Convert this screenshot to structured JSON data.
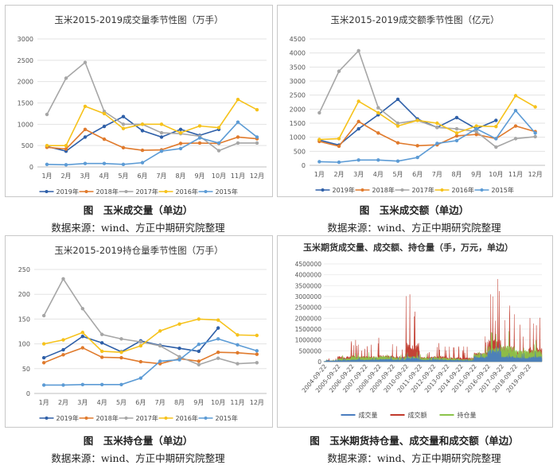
{
  "chart_data": [
    {
      "type": "line",
      "title": "玉米2015-2019成交量季节性图（万手）",
      "categories": [
        "1月",
        "2月",
        "3月",
        "4月",
        "5月",
        "6月",
        "7月",
        "8月",
        "9月",
        "10月",
        "11月",
        "12月"
      ],
      "ylim": [
        0,
        3000
      ],
      "yticks": [
        0,
        500,
        1000,
        1500,
        2000,
        2500,
        3000
      ],
      "series": [
        {
          "name": "2019年",
          "color": "#2e5fa8",
          "values": [
            480,
            370,
            700,
            950,
            1180,
            850,
            700,
            880,
            740,
            880,
            null,
            null
          ]
        },
        {
          "name": "2018年",
          "color": "#e07a2c",
          "values": [
            460,
            420,
            880,
            650,
            450,
            390,
            400,
            550,
            560,
            550,
            700,
            660
          ]
        },
        {
          "name": "2017年",
          "color": "#a6a6a6",
          "values": [
            1230,
            2080,
            2450,
            1300,
            1000,
            1000,
            800,
            780,
            720,
            380,
            560,
            560
          ]
        },
        {
          "name": "2016年",
          "color": "#f6c21b",
          "values": [
            500,
            500,
            1420,
            1250,
            900,
            1000,
            1000,
            800,
            960,
            920,
            1580,
            1340
          ]
        },
        {
          "name": "2015年",
          "color": "#5c9bd5",
          "values": [
            60,
            50,
            80,
            80,
            60,
            100,
            370,
            430,
            680,
            560,
            1050,
            700
          ]
        }
      ],
      "caption": "图　玉米成交量（单边）",
      "source": "数据来源：wind、方正中期研究院整理"
    },
    {
      "type": "line",
      "title": "玉米2015-2019成交额季节性图（亿元）",
      "categories": [
        "1月",
        "2月",
        "3月",
        "4月",
        "5月",
        "6月",
        "7月",
        "8月",
        "9月",
        "10月",
        "11月",
        "12月"
      ],
      "ylim": [
        0,
        4500
      ],
      "yticks": [
        0,
        500,
        1000,
        1500,
        2000,
        2500,
        3000,
        3500,
        4000,
        4500
      ],
      "series": [
        {
          "name": "2019年",
          "color": "#2e5fa8",
          "values": [
            900,
            720,
            1300,
            1800,
            2350,
            1650,
            1350,
            1700,
            1300,
            1600,
            null,
            null
          ]
        },
        {
          "name": "2018年",
          "color": "#e07a2c",
          "values": [
            850,
            680,
            1560,
            1150,
            800,
            700,
            730,
            1050,
            1100,
            950,
            1400,
            1200
          ]
        },
        {
          "name": "2017年",
          "color": "#a6a6a6",
          "values": [
            1870,
            3350,
            4080,
            2050,
            1500,
            1600,
            1350,
            1300,
            1200,
            650,
            950,
            1020
          ]
        },
        {
          "name": "2016年",
          "color": "#f6c21b",
          "values": [
            920,
            950,
            2280,
            1870,
            1400,
            1600,
            1500,
            1150,
            1400,
            1380,
            2480,
            2080
          ]
        },
        {
          "name": "2015年",
          "color": "#5c9bd5",
          "values": [
            130,
            110,
            190,
            190,
            150,
            280,
            780,
            880,
            1300,
            950,
            1950,
            1150
          ]
        }
      ],
      "caption": "图　玉米成交额（单边）",
      "source": "数据来源：wind、方正中期研究院整理"
    },
    {
      "type": "line",
      "title": "玉米2015-2019持仓量季节性图（万手）",
      "categories": [
        "1月",
        "2月",
        "3月",
        "4月",
        "5月",
        "6月",
        "7月",
        "8月",
        "9月",
        "10月",
        "11月",
        "12月"
      ],
      "ylim": [
        0,
        250
      ],
      "yticks": [
        0,
        50,
        100,
        150,
        200,
        250
      ],
      "series": [
        {
          "name": "2019年",
          "color": "#2e5fa8",
          "values": [
            72,
            88,
            115,
            102,
            84,
            106,
            97,
            91,
            85,
            132,
            null,
            null
          ]
        },
        {
          "name": "2018年",
          "color": "#e07a2c",
          "values": [
            62,
            78,
            92,
            73,
            72,
            64,
            60,
            70,
            65,
            83,
            82,
            79
          ]
        },
        {
          "name": "2017年",
          "color": "#a6a6a6",
          "values": [
            157,
            231,
            171,
            119,
            110,
            104,
            96,
            74,
            58,
            71,
            60,
            62
          ]
        },
        {
          "name": "2016年",
          "color": "#f6c21b",
          "values": [
            100,
            108,
            123,
            85,
            83,
            96,
            126,
            140,
            150,
            148,
            118,
            117
          ]
        },
        {
          "name": "2015年",
          "color": "#5c9bd5",
          "values": [
            17,
            17,
            18,
            18,
            18,
            31,
            65,
            68,
            99,
            110,
            98,
            86
          ]
        }
      ],
      "caption": "图　玉米持仓量（单边）",
      "source": "数据来源：wind、方正中期研究院整理"
    },
    {
      "type": "area",
      "title": "玉米期货成交量、成交额、持仓量（手，万元，单边）",
      "ylim": [
        0,
        4500000
      ],
      "yticks": [
        0,
        500000,
        1000000,
        1500000,
        2000000,
        2500000,
        3000000,
        3500000,
        4000000,
        4500000
      ],
      "ytick_labels": [
        "0",
        "500000",
        "1000000",
        "1500000",
        "2000000",
        "2500000",
        "3000000",
        "3500000",
        "4000000",
        "4500000"
      ],
      "x_labels": [
        "2004-09-22",
        "2005-09-22",
        "2006-09-22",
        "2007-09-22",
        "2008-09-22",
        "2009-09-22",
        "2010-09-22",
        "2011-09-22",
        "2012-09-22",
        "2013-09-22",
        "2014-09-22",
        "2015-09-22",
        "2016-09-22",
        "2017-09-22",
        "2018-09-22",
        "2019-09-22"
      ],
      "series": [
        {
          "name": "成交量",
          "color": "#4a7dbf"
        },
        {
          "name": "成交额",
          "color": "#c0392b"
        },
        {
          "name": "持仓量",
          "color": "#8bc34a"
        }
      ],
      "annual_peaks": {
        "成交额": [
          150000,
          900000,
          1000000,
          900000,
          1100000,
          900000,
          3100000,
          800000,
          1000000,
          700000,
          700000,
          1500000,
          3800000,
          2600000,
          1700000,
          2400000
        ],
        "持仓量": [
          100000,
          300000,
          450000,
          450000,
          500000,
          380000,
          450000,
          350000,
          350000,
          280000,
          200000,
          700000,
          1350000,
          1400000,
          1000000,
          1000000
        ],
        "成交量": [
          100000,
          150000,
          200000,
          200000,
          250000,
          200000,
          350000,
          200000,
          200000,
          150000,
          120000,
          500000,
          1100000,
          500000,
          400000,
          500000
        ]
      },
      "caption": "图　玉米期货持仓量、成交量和成交额（单边）",
      "source": "数据来源：wind、方正中期研究院整理"
    }
  ]
}
